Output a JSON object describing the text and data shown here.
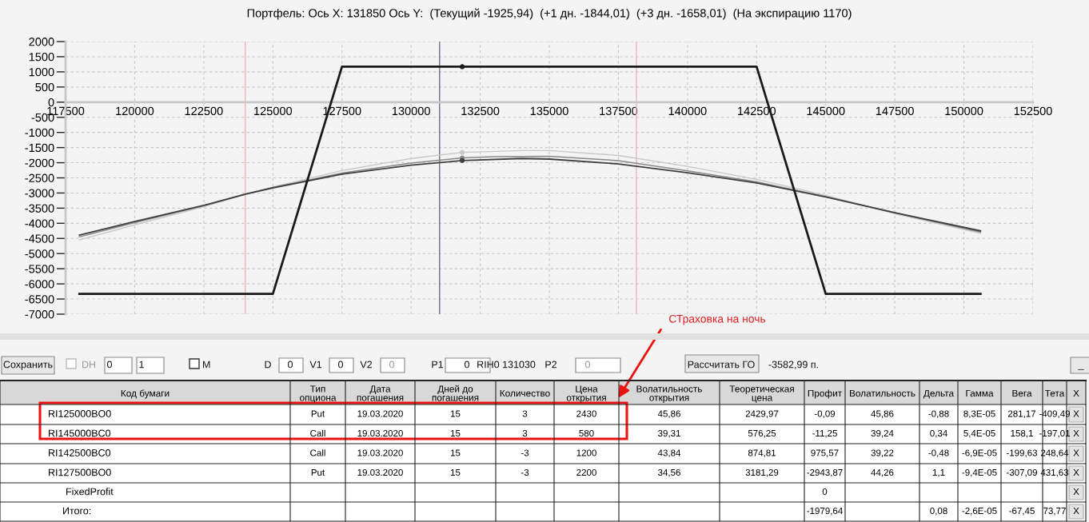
{
  "chart_data": [
    {
      "type": "line",
      "title": "Портфель: Ось X: 131850 Ось Y:  (Текущий -1925,94)  (+1 дн. -1844,01)  (+3 дн. -1658,01)  (На экспирацию 1170)",
      "xlim": [
        117500,
        152500
      ],
      "ylim": [
        -7000,
        2000
      ],
      "xticks": [
        117500,
        120000,
        122500,
        125000,
        127500,
        130000,
        132500,
        135000,
        137500,
        140000,
        142500,
        145000,
        147500,
        150000,
        152500
      ],
      "yticks": [
        -7000,
        -6500,
        -6000,
        -5500,
        -5000,
        -4500,
        -4000,
        -3500,
        -3000,
        -2500,
        -2000,
        -1500,
        -1000,
        -500,
        0,
        500,
        1000,
        1500,
        2000
      ],
      "grid": true,
      "ref_lines": [
        {
          "axis": "x",
          "value": 124000,
          "color": "#f4b4b4"
        },
        {
          "axis": "x",
          "value": 131030,
          "color": "#6a7290"
        },
        {
          "axis": "x",
          "value": 138150,
          "color": "#f4b4b4"
        }
      ],
      "series": [
        {
          "type": "line",
          "color": "#c8c8c8",
          "x": [
            118000,
            120000,
            122500,
            124000,
            125000,
            127500,
            130000,
            131850,
            134000,
            135000,
            137500,
            140000,
            142500,
            145000,
            147500,
            150600
          ],
          "values": [
            -4550,
            -4050,
            -3450,
            -3050,
            -2800,
            -2260,
            -1860,
            -1660,
            -1600,
            -1600,
            -1760,
            -2120,
            -2550,
            -3080,
            -3680,
            -4330
          ]
        },
        {
          "type": "line",
          "color": "#8a8a8a",
          "x": [
            118000,
            120000,
            122500,
            124000,
            125000,
            127500,
            130000,
            131850,
            133000,
            135000,
            137500,
            140000,
            142500,
            145000,
            147500,
            150600
          ],
          "values": [
            -4450,
            -3980,
            -3420,
            -3040,
            -2820,
            -2340,
            -2010,
            -1840,
            -1800,
            -1790,
            -1930,
            -2270,
            -2630,
            -3120,
            -3650,
            -4290
          ]
        },
        {
          "type": "line",
          "color": "#404040",
          "x": [
            118000,
            120000,
            122500,
            124000,
            125000,
            127500,
            130000,
            131850,
            134000,
            135000,
            137500,
            140000,
            142500,
            145000,
            147500,
            150600
          ],
          "values": [
            -4390,
            -3940,
            -3410,
            -3040,
            -2830,
            -2380,
            -2080,
            -1930,
            -1860,
            -1880,
            -2040,
            -2330,
            -2670,
            -3130,
            -3650,
            -4250
          ]
        },
        {
          "type": "line",
          "color": "#1a1a1a",
          "x": [
            118000,
            125000,
            127500,
            142500,
            145000,
            150600
          ],
          "values": [
            -6330,
            -6330,
            1170,
            1170,
            -6330,
            -6330
          ]
        },
        {
          "type": "scatter",
          "marker": "circle",
          "colors": [
            "#c8c8c8",
            "#8a8a8a",
            "#404040",
            "#1a1a1a"
          ],
          "x": [
            131850,
            131850,
            131850,
            131850
          ],
          "values": [
            -1658.01,
            -1844.01,
            -1925.94,
            1170
          ]
        }
      ]
    },
    {
      "type": "other",
      "categories": [
        "Код бумаги",
        "Тип\nопциона",
        "Дата\nпогашения",
        "Дней до\nпогашения",
        "Количество",
        "Цена\nоткрытия",
        "Волатильность\nоткрытия",
        "Теоретическая\nцена",
        "Профит",
        "Волатильность",
        "Дельта",
        "Гамма",
        "Вега",
        "Тета",
        "X"
      ],
      "cell_labels": [
        [
          "RI125000BO0",
          "Put",
          "19.03.2020",
          "15",
          "3",
          "2430",
          "45,86",
          "2429,97",
          "-0,09",
          "45,86",
          "-0,88",
          "8,3E-05",
          "281,17",
          "-409,49",
          "X"
        ],
        [
          "RI145000BC0",
          "Call",
          "19.03.2020",
          "15",
          "3",
          "580",
          "39,31",
          "576,25",
          "-11,25",
          "39,24",
          "0,34",
          "5,4E-05",
          "158,1",
          "-197,01",
          "X"
        ],
        [
          "RI142500BC0",
          "Call",
          "19.03.2020",
          "15",
          "-3",
          "1200",
          "43,84",
          "874,81",
          "975,57",
          "39,22",
          "-0,48",
          "-6,9E-05",
          "-199,63",
          "248,64",
          "X"
        ],
        [
          "RI127500BO0",
          "Put",
          "19.03.2020",
          "15",
          "-3",
          "2200",
          "34,56",
          "3181,29",
          "-2943,87",
          "44,26",
          "1,1",
          "-9,4E-05",
          "-307,09",
          "431,63",
          "X"
        ],
        [
          "FixedProfit",
          null,
          null,
          null,
          null,
          null,
          null,
          null,
          "0",
          null,
          null,
          null,
          null,
          null,
          "X"
        ],
        [
          "Итого:",
          null,
          null,
          null,
          null,
          null,
          null,
          null,
          "-1979,64",
          null,
          "0,08",
          "-2,6E-05",
          "-67,45",
          "73,77",
          "X"
        ]
      ],
      "annotations": [
        "Сохранить",
        "DH",
        "0",
        "1",
        "M",
        "D",
        "0",
        "V1",
        "0",
        "V2",
        "0",
        "P1",
        "0",
        "RIH0 131030",
        "P2",
        "0",
        "Рассчитать ГО",
        "-3582,99 п.",
        "_",
        "СТраховка на ночь"
      ]
    }
  ]
}
